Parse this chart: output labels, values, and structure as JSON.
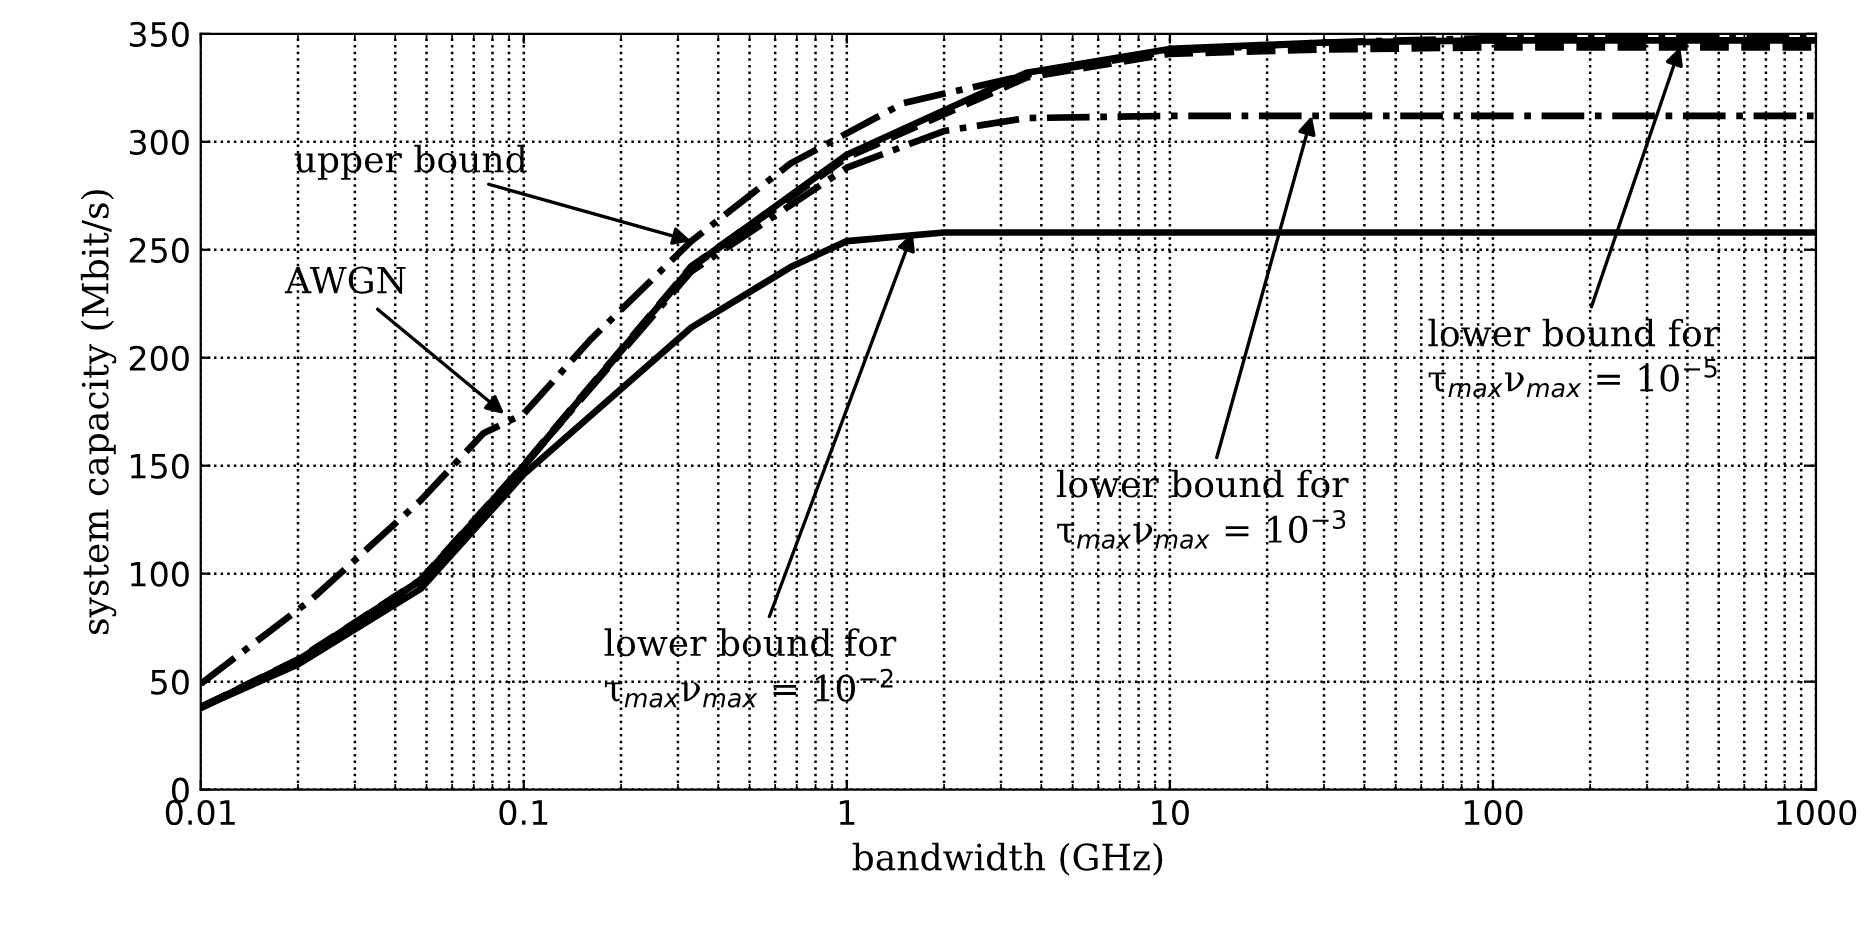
{
  "chart_data": {
    "type": "line",
    "xlabel": "bandwidth (GHz)",
    "ylabel": "system capacity (Mbit/s)",
    "log": "x",
    "xlim": [
      0.01,
      1000
    ],
    "xticks": [
      0.01,
      0.1,
      1,
      10,
      100,
      1000
    ],
    "ylim": [
      0,
      350
    ],
    "yticks": [
      0,
      50,
      100,
      150,
      200,
      250,
      300,
      350
    ],
    "grid": true,
    "marker": "none",
    "series": [
      {
        "color": "#000000",
        "line_style": "dashdot",
        "x": [
          0.01,
          0.022,
          0.048,
          0.075,
          0.1,
          0.16,
          0.33,
          0.67,
          1.5,
          3.6,
          10,
          30,
          100,
          1000
        ],
        "values": [
          49,
          88,
          134,
          165,
          174,
          208,
          254,
          290,
          318,
          331,
          342,
          346,
          348,
          348
        ]
      },
      {
        "color": "#000000",
        "line_style": "solid",
        "x": [
          0.01,
          0.02,
          0.048,
          0.1,
          0.33,
          1,
          3.6,
          10,
          30,
          100,
          1000
        ],
        "values": [
          38,
          60,
          97,
          150,
          242,
          294,
          332,
          343,
          346,
          347,
          347
        ]
      },
      {
        "color": "#000000",
        "line_style": "dashed",
        "x": [
          0.01,
          0.02,
          0.048,
          0.1,
          0.33,
          1,
          3.6,
          10,
          30,
          100,
          1000
        ],
        "values": [
          38,
          60,
          97,
          150,
          242,
          293,
          330,
          341,
          343,
          344,
          344
        ]
      },
      {
        "color": "#000000",
        "line_style": "dashdot",
        "x": [
          0.01,
          0.02,
          0.048,
          0.1,
          0.33,
          1,
          2,
          3.6,
          10,
          100,
          1000
        ],
        "values": [
          38,
          60,
          97,
          150,
          240,
          288,
          305,
          311,
          312,
          312,
          312
        ]
      },
      {
        "color": "#000000",
        "line_style": "solid",
        "x": [
          0.01,
          0.02,
          0.048,
          0.1,
          0.33,
          0.67,
          1,
          2,
          10,
          100,
          1000
        ],
        "values": [
          38,
          58,
          93,
          146,
          214,
          242,
          254,
          258,
          258,
          258,
          258
        ]
      }
    ],
    "annotations": [
      {
        "text": "upper bound",
        "x": 0.33,
        "y": 254
      },
      {
        "text": "AWGN",
        "x": 0.087,
        "y": 174
      },
      {
        "text": "lower bound for\nτ$_{max}$ν$_{max}$ = 10$^{−2}$",
        "x": 1.6,
        "y": 258
      },
      {
        "text": "lower bound for\nτ$_{max}$ν$_{max}$ = 10$^{−3}$",
        "x": 27.5,
        "y": 312
      },
      {
        "text": "lower bound for\nτ$_{max}$ν$_{max}$ = 10$^{−5}$",
        "x": 380,
        "y": 344
      }
    ]
  }
}
